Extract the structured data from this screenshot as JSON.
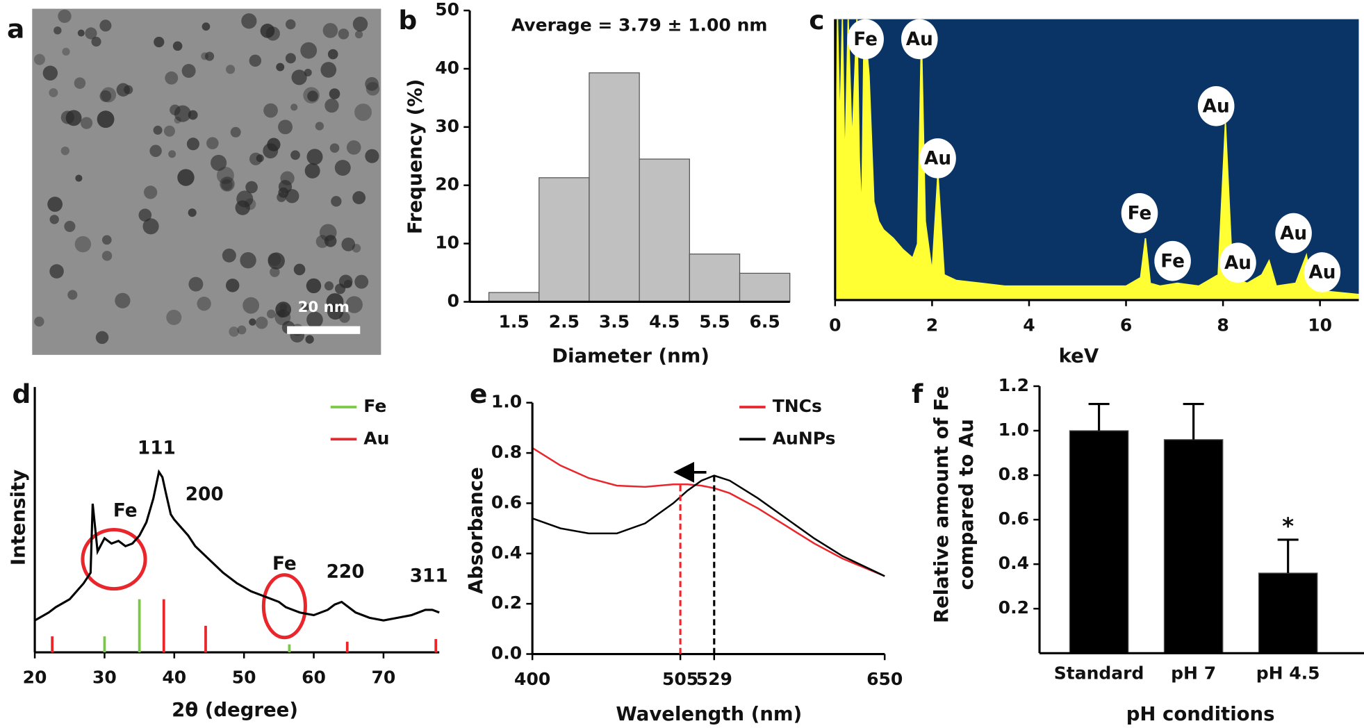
{
  "image_panel": {
    "label": "a",
    "scale_bar": "20 nm"
  },
  "chart_data": [
    {
      "panel_label": "b",
      "type": "bar",
      "annotation": "Average = 3.79 ± 1.00 nm",
      "x_label": "Diameter (nm)",
      "y_label": "Frequency (%)",
      "categories": [
        "1.5",
        "2.5",
        "3.5",
        "4.5",
        "5.5",
        "6.5"
      ],
      "values": [
        1.6,
        21.3,
        39.3,
        24.5,
        8.2,
        4.9
      ],
      "color": "#c0c0c0",
      "ylim": [
        0,
        50
      ],
      "yticks": [
        0,
        10,
        20,
        30,
        40,
        50
      ]
    },
    {
      "panel_label": "c",
      "type": "area",
      "x_label": "keV",
      "background": "#0a3366",
      "color": "#ffff33",
      "x": [
        0,
        0.05,
        0.1,
        0.15,
        0.2,
        0.27,
        0.35,
        0.45,
        0.5,
        0.55,
        0.6,
        0.7,
        0.8,
        0.9,
        1.0,
        1.2,
        1.4,
        1.6,
        1.7,
        1.78,
        1.86,
        2.0,
        2.12,
        2.25,
        2.5,
        3.0,
        3.5,
        4.0,
        4.5,
        5.0,
        5.5,
        6.0,
        6.3,
        6.4,
        6.5,
        6.7,
        7.06,
        7.5,
        7.9,
        8.05,
        8.2,
        8.5,
        8.8,
        8.95,
        9.1,
        9.5,
        9.72,
        9.85,
        10.2,
        10.8
      ],
      "values": [
        0,
        100,
        60,
        100,
        45,
        100,
        55,
        100,
        50,
        30,
        100,
        80,
        35,
        28,
        25,
        22,
        18,
        15,
        20,
        94,
        28,
        10,
        45,
        9,
        7,
        6,
        5,
        5,
        5,
        5,
        5,
        5,
        8,
        22,
        6,
        5,
        6,
        5,
        9,
        63,
        8,
        6,
        9,
        14,
        5,
        6,
        16,
        4,
        3,
        2
      ],
      "xlim": [
        0,
        10.8
      ],
      "ylim": [
        0,
        100
      ],
      "xticks": [
        0,
        2,
        4,
        6,
        8,
        10
      ],
      "peak_labels": [
        "Fe",
        "Au",
        "Au",
        "Au",
        "Fe",
        "Fe",
        "Au",
        "Au",
        "Au"
      ]
    },
    {
      "panel_label": "d",
      "type": "line",
      "x_label": "2θ (degree)",
      "y_label": "Intensity",
      "color": "#000000",
      "x": [
        20,
        22,
        23,
        25,
        27,
        28,
        28.3,
        29,
        30,
        31,
        32,
        33,
        34,
        35,
        36,
        37,
        37.8,
        38.3,
        38.8,
        39.5,
        40,
        41,
        42,
        43,
        45,
        47,
        49,
        51,
        53,
        55,
        56,
        57,
        58,
        60,
        62,
        63,
        64,
        65,
        66,
        68,
        70,
        72,
        74,
        75,
        76,
        77,
        78
      ],
      "values": [
        12,
        15,
        17,
        20,
        26,
        30,
        56,
        38,
        43,
        41,
        42,
        40,
        41,
        44,
        49,
        58,
        68,
        66,
        60,
        52,
        50,
        47,
        44,
        40,
        35,
        30,
        26,
        23,
        21,
        19,
        17,
        16,
        15,
        14,
        16,
        18,
        19,
        17,
        15,
        13,
        12,
        13,
        14,
        15,
        16,
        16,
        15
      ],
      "xlim": [
        20,
        78
      ],
      "ylim": [
        0,
        100
      ],
      "xticks": [
        20,
        30,
        40,
        50,
        60,
        70
      ],
      "reference_lines": [
        {
          "name": "Fe",
          "color": "#7ac943",
          "x": [
            30,
            35,
            56.5
          ],
          "values": [
            6,
            20,
            3
          ]
        },
        {
          "name": "Au",
          "color": "#e8262b",
          "x": [
            22.5,
            38.5,
            44.5,
            64.8,
            77.5
          ],
          "values": [
            6,
            20,
            10,
            4,
            5
          ]
        }
      ],
      "peak_labels": [
        "111",
        "200",
        "Fe",
        "Fe",
        "220",
        "311"
      ]
    },
    {
      "panel_label": "e",
      "type": "line",
      "x_label": "Wavelength (nm)",
      "y_label": "Absorbance",
      "x": [
        400,
        420,
        440,
        460,
        480,
        500,
        510,
        520,
        529,
        540,
        560,
        580,
        600,
        620,
        650
      ],
      "series": [
        {
          "name": "TNCs",
          "color": "#e8262b",
          "values": [
            0.82,
            0.75,
            0.7,
            0.67,
            0.665,
            0.675,
            0.675,
            0.67,
            0.66,
            0.64,
            0.58,
            0.51,
            0.44,
            0.38,
            0.31
          ]
        },
        {
          "name": "AuNPs",
          "color": "#000000",
          "values": [
            0.54,
            0.5,
            0.48,
            0.48,
            0.52,
            0.6,
            0.65,
            0.69,
            0.71,
            0.69,
            0.62,
            0.54,
            0.46,
            0.39,
            0.31
          ]
        }
      ],
      "peak_lines": [
        {
          "x": 505,
          "y": 0.675,
          "color": "#e8262b"
        },
        {
          "x": 529,
          "y": 0.71,
          "color": "#000000"
        }
      ],
      "xlim": [
        400,
        650
      ],
      "xticks": [
        400,
        505,
        529,
        650
      ],
      "ylim": [
        0,
        1
      ],
      "yticks": [
        {
          "value": 0,
          "label": "0.0"
        },
        0.2,
        0.4,
        0.6,
        0.8,
        {
          "value": 1,
          "label": "1.0"
        }
      ]
    },
    {
      "panel_label": "f",
      "type": "bar",
      "x_label": "pH conditions",
      "y_label": [
        "Relative amount of Fe",
        "compared to Au"
      ],
      "categories": [
        "Standard",
        "pH 7",
        "pH 4.5"
      ],
      "values": [
        1.0,
        0.96,
        0.36
      ],
      "errors": [
        0.12,
        0.16,
        0.15
      ],
      "color": "#000000",
      "annotation": "*",
      "ylim": [
        0,
        1.2
      ],
      "yticks": [
        0.2,
        0.4,
        0.6,
        0.8,
        {
          "value": 1,
          "label": "1.0"
        },
        1.2
      ]
    }
  ]
}
